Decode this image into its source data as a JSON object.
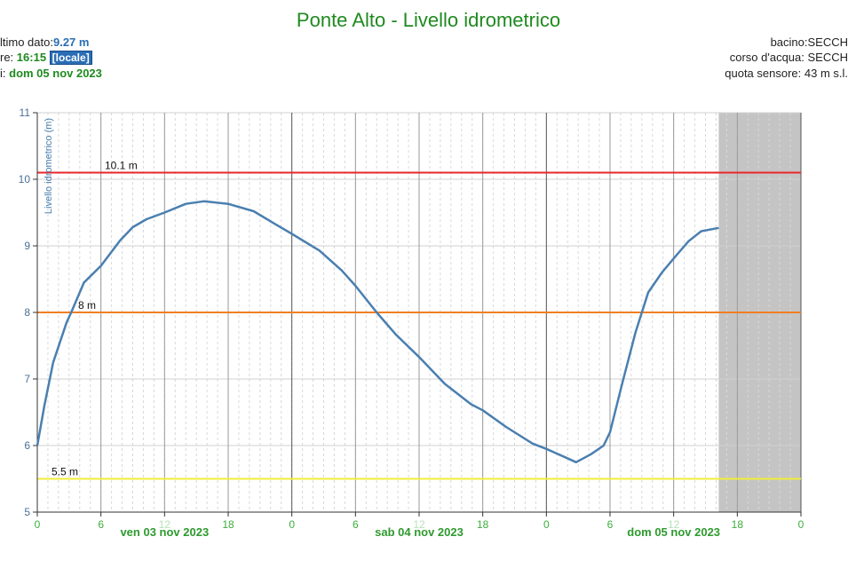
{
  "header": {
    "last_label": "ltimo dato:",
    "last_value": "9.27 m",
    "time_label": "re: ",
    "time_value": "16:15",
    "time_zone": "[locale]",
    "date_label": "i: ",
    "date_value": "dom 05 nov 2023",
    "basin": "bacino:SECCH",
    "river": "corso d'acqua: SECCH",
    "altitude": "quota sensore: 43 m s.l."
  },
  "chart_data": {
    "type": "line",
    "title": "Ponte Alto - Livello idrometrico",
    "y_label": "Livello idrometrico (m)",
    "color": "#4a7fb0",
    "x": [
      0,
      0.67,
      1.5,
      2.76,
      3.2,
      4.4,
      6,
      7.8,
      9,
      10.3,
      12,
      14,
      15.7,
      18,
      20.4,
      22.4,
      24,
      26.6,
      28.7,
      30,
      32,
      33.8,
      36,
      38.4,
      40.9,
      42,
      44.2,
      46.7,
      48,
      49.7,
      50.8,
      52.2,
      53.4,
      54,
      55.1,
      56.4,
      57.6,
      58.9,
      60.1,
      61.4,
      62.6,
      64.25
    ],
    "values": [
      6.0,
      6.6,
      7.25,
      7.85,
      8.0,
      8.45,
      8.7,
      9.08,
      9.28,
      9.4,
      9.5,
      9.63,
      9.67,
      9.63,
      9.52,
      9.33,
      9.18,
      8.93,
      8.63,
      8.4,
      8.0,
      7.67,
      7.33,
      6.93,
      6.62,
      6.53,
      6.28,
      6.03,
      5.95,
      5.83,
      5.75,
      5.87,
      6.0,
      6.2,
      6.9,
      7.7,
      8.3,
      8.6,
      8.83,
      9.07,
      9.22,
      9.27
    ],
    "xlim": [
      0,
      72
    ],
    "xticks": [
      0,
      6,
      12,
      18,
      {
        "value": 24,
        "label": "0"
      },
      {
        "value": 30,
        "label": "6"
      },
      {
        "value": 36,
        "label": "12"
      },
      {
        "value": 42,
        "label": "18"
      },
      {
        "value": 48,
        "label": "0"
      },
      {
        "value": 54,
        "label": "6"
      },
      {
        "value": 60,
        "label": "12"
      },
      {
        "value": 66,
        "label": "18"
      },
      {
        "value": 72,
        "label": "0"
      }
    ],
    "date_labels": [
      {
        "value": 12,
        "label": "ven 03 nov 2023"
      },
      {
        "value": 36,
        "label": "sab 04 nov 2023"
      },
      {
        "value": 60,
        "label": "dom 05 nov 2023"
      }
    ],
    "ylim": [
      5,
      11
    ],
    "yticks": [
      5,
      6,
      7,
      8,
      9,
      10,
      11
    ],
    "grid": true,
    "thresholds": [
      {
        "value": 10.1,
        "label": "10.1 m",
        "color": "#e8262b"
      },
      {
        "value": 8,
        "label": "8 m",
        "color": "#f07f22"
      },
      {
        "value": 5.5,
        "label": "5.5 m",
        "color": "#f2ec3a"
      }
    ]
  }
}
